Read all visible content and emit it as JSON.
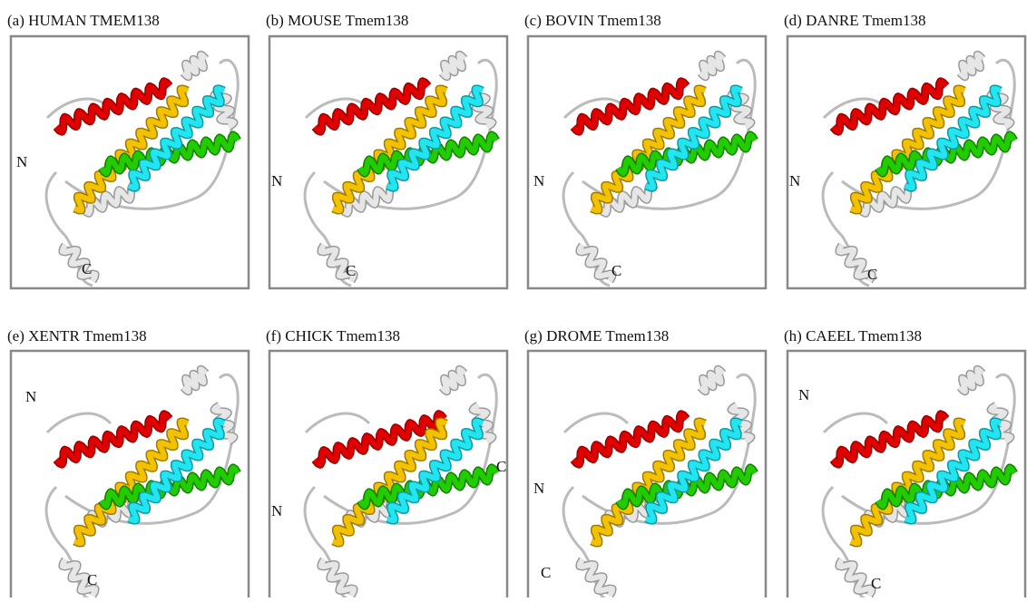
{
  "panels": [
    {
      "label": "(a) HUMAN TMEM138",
      "n": "N",
      "c": "C"
    },
    {
      "label": "(b) MOUSE Tmem138",
      "n": "N",
      "c": "C"
    },
    {
      "label": "(c) BOVIN Tmem138",
      "n": "N",
      "c": "C"
    },
    {
      "label": "(d) DANRE Tmem138",
      "n": "N",
      "c": "C"
    },
    {
      "label": "(e) XENTR Tmem138",
      "n": "N",
      "c": "C"
    },
    {
      "label": "(f)  CHICK Tmem138",
      "n": "N",
      "c": "C"
    },
    {
      "label": "(g) DROME Tmem138",
      "n": "N",
      "c": "C"
    },
    {
      "label": "(h) CAEEL Tmem138",
      "n": "N",
      "c": "C"
    }
  ]
}
